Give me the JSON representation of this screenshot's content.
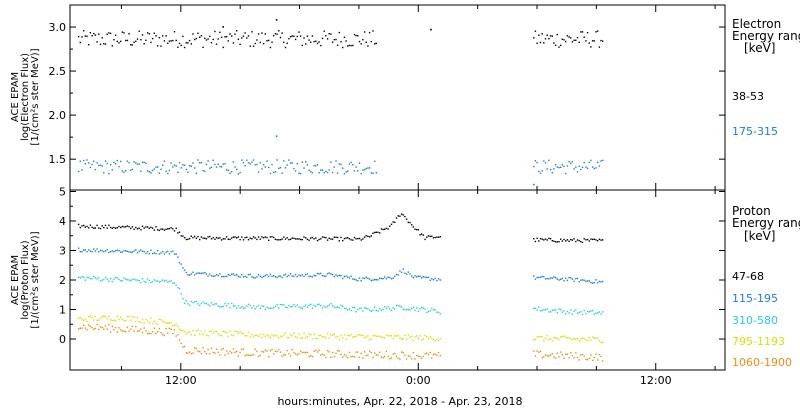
{
  "chart_data": [
    {
      "type": "scatter",
      "panel": "electron",
      "ylabel_lines": [
        "ACE EPAM",
        "log(Electron Flux)",
        "[1/(cm²s ster MeV)]"
      ],
      "ylim": [
        1.15,
        3.25
      ],
      "yticks": [
        1.5,
        2.0,
        2.5,
        3.0
      ],
      "ytick_labels": [
        "1.5",
        "2.0",
        "2.5",
        "3.0"
      ],
      "legend": {
        "title_lines": [
          "Electron",
          "Energy ranges",
          "[keV]"
        ],
        "entries": [
          {
            "label": "38-53",
            "color": "#000000"
          },
          {
            "label": "175-315",
            "color": "#1a7fd6"
          }
        ]
      },
      "series": [
        {
          "name": "38-53",
          "color": "#000000",
          "level": 2.87,
          "jitter": 0.06,
          "segments": [
            [
              -5.2,
              9.9
            ],
            [
              17.8,
              21.3
            ]
          ],
          "outliers": [
            [
              2.1,
              3.01
            ],
            [
              4.8,
              3.09
            ],
            [
              12.6,
              2.98
            ]
          ]
        },
        {
          "name": "175-315",
          "color": "#1a7fd6",
          "level": 1.42,
          "jitter": 0.05,
          "segments": [
            [
              -5.2,
              9.9
            ],
            [
              17.8,
              21.3
            ]
          ],
          "outliers": [
            [
              4.8,
              1.77
            ],
            [
              17.8,
              1.22
            ]
          ]
        }
      ]
    },
    {
      "type": "scatter",
      "panel": "proton",
      "ylabel_lines": [
        "ACE EPAM",
        "log(Proton Flux)",
        "[1/(cm²s ster MeV)]"
      ],
      "ylim": [
        -1.05,
        5.05
      ],
      "yticks": [
        0,
        1,
        2,
        3,
        4,
        5
      ],
      "ytick_labels": [
        "0",
        "1",
        "2",
        "3",
        "4",
        "5"
      ],
      "legend": {
        "title_lines": [
          "Proton",
          "Energy ranges",
          "[keV]"
        ],
        "entries": [
          {
            "label": "47-68",
            "color": "#000000"
          },
          {
            "label": "115-195",
            "color": "#1a7fd6"
          },
          {
            "label": "310-580",
            "color": "#21d3d3"
          },
          {
            "label": "795-1193",
            "color": "#d7e200"
          },
          {
            "label": "1060-1900",
            "color": "#e8900c"
          }
        ]
      },
      "series": [
        {
          "name": "47-68",
          "color": "#000000",
          "points_base": [
            [
              -5.2,
              3.85
            ],
            [
              -0.3,
              3.75
            ],
            [
              0.2,
              3.45
            ],
            [
              7.0,
              3.42
            ],
            [
              9.0,
              3.4
            ],
            [
              9.5,
              3.5
            ],
            [
              10.6,
              3.85
            ],
            [
              11.1,
              4.3
            ],
            [
              11.7,
              3.85
            ],
            [
              12.3,
              3.45
            ],
            [
              13.1,
              3.5
            ],
            [
              17.8,
              3.38
            ],
            [
              21.3,
              3.35
            ]
          ],
          "segments": [
            [
              -5.2,
              13.1
            ],
            [
              17.8,
              21.3
            ]
          ],
          "jitter": 0.04
        },
        {
          "name": "115-195",
          "color": "#1a7fd6",
          "points_base": [
            [
              -5.2,
              3.05
            ],
            [
              -0.3,
              2.95
            ],
            [
              0.2,
              2.25
            ],
            [
              4.0,
              2.15
            ],
            [
              7.5,
              2.2
            ],
            [
              9.0,
              2.05
            ],
            [
              10.6,
              2.1
            ],
            [
              11.2,
              2.35
            ],
            [
              11.8,
              2.1
            ],
            [
              13.1,
              2.05
            ],
            [
              17.8,
              2.1
            ],
            [
              19.5,
              2.05
            ],
            [
              21.3,
              1.95
            ]
          ],
          "segments": [
            [
              -5.2,
              13.1
            ],
            [
              17.8,
              21.3
            ]
          ],
          "jitter": 0.04
        },
        {
          "name": "310-580",
          "color": "#21d3d3",
          "points_base": [
            [
              -5.2,
              2.1
            ],
            [
              -0.3,
              1.95
            ],
            [
              0.2,
              1.25
            ],
            [
              4.0,
              1.1
            ],
            [
              7.5,
              1.15
            ],
            [
              9.0,
              1.0
            ],
            [
              11.2,
              1.1
            ],
            [
              13.1,
              0.95
            ],
            [
              17.8,
              1.05
            ],
            [
              19.5,
              0.95
            ],
            [
              21.3,
              0.9
            ]
          ],
          "segments": [
            [
              -5.2,
              13.1
            ],
            [
              17.8,
              21.3
            ]
          ],
          "jitter": 0.05
        },
        {
          "name": "795-1193",
          "color": "#d7e200",
          "points_base": [
            [
              -5.2,
              0.7
            ],
            [
              -3.0,
              0.75
            ],
            [
              -0.3,
              0.55
            ],
            [
              0.2,
              0.25
            ],
            [
              4.0,
              0.15
            ],
            [
              9.0,
              0.1
            ],
            [
              13.1,
              0.05
            ],
            [
              17.8,
              0.05
            ],
            [
              21.3,
              0.0
            ]
          ],
          "segments": [
            [
              -5.2,
              13.1
            ],
            [
              17.8,
              21.3
            ]
          ],
          "jitter": 0.06
        },
        {
          "name": "1060-1900",
          "color": "#e8900c",
          "points_base": [
            [
              -5.2,
              0.45
            ],
            [
              -0.3,
              0.25
            ],
            [
              0.2,
              -0.35
            ],
            [
              4.0,
              -0.45
            ],
            [
              9.0,
              -0.5
            ],
            [
              13.1,
              -0.55
            ],
            [
              17.8,
              -0.5
            ],
            [
              21.3,
              -0.6
            ]
          ],
          "segments": [
            [
              -5.2,
              13.1
            ],
            [
              17.8,
              21.3
            ]
          ],
          "jitter": 0.08
        }
      ]
    }
  ],
  "x_axis": {
    "xlim": [
      -5.6,
      27.5
    ],
    "ticks_hours": [
      0,
      12,
      24
    ],
    "tick_labels": [
      "12:00",
      "0:00",
      "12:00"
    ],
    "minor_ticks_hours": [
      -3,
      3,
      6,
      9,
      15,
      18,
      21,
      27
    ],
    "label": "hours:minutes, Apr. 22, 2018 - Apr. 23, 2018"
  }
}
